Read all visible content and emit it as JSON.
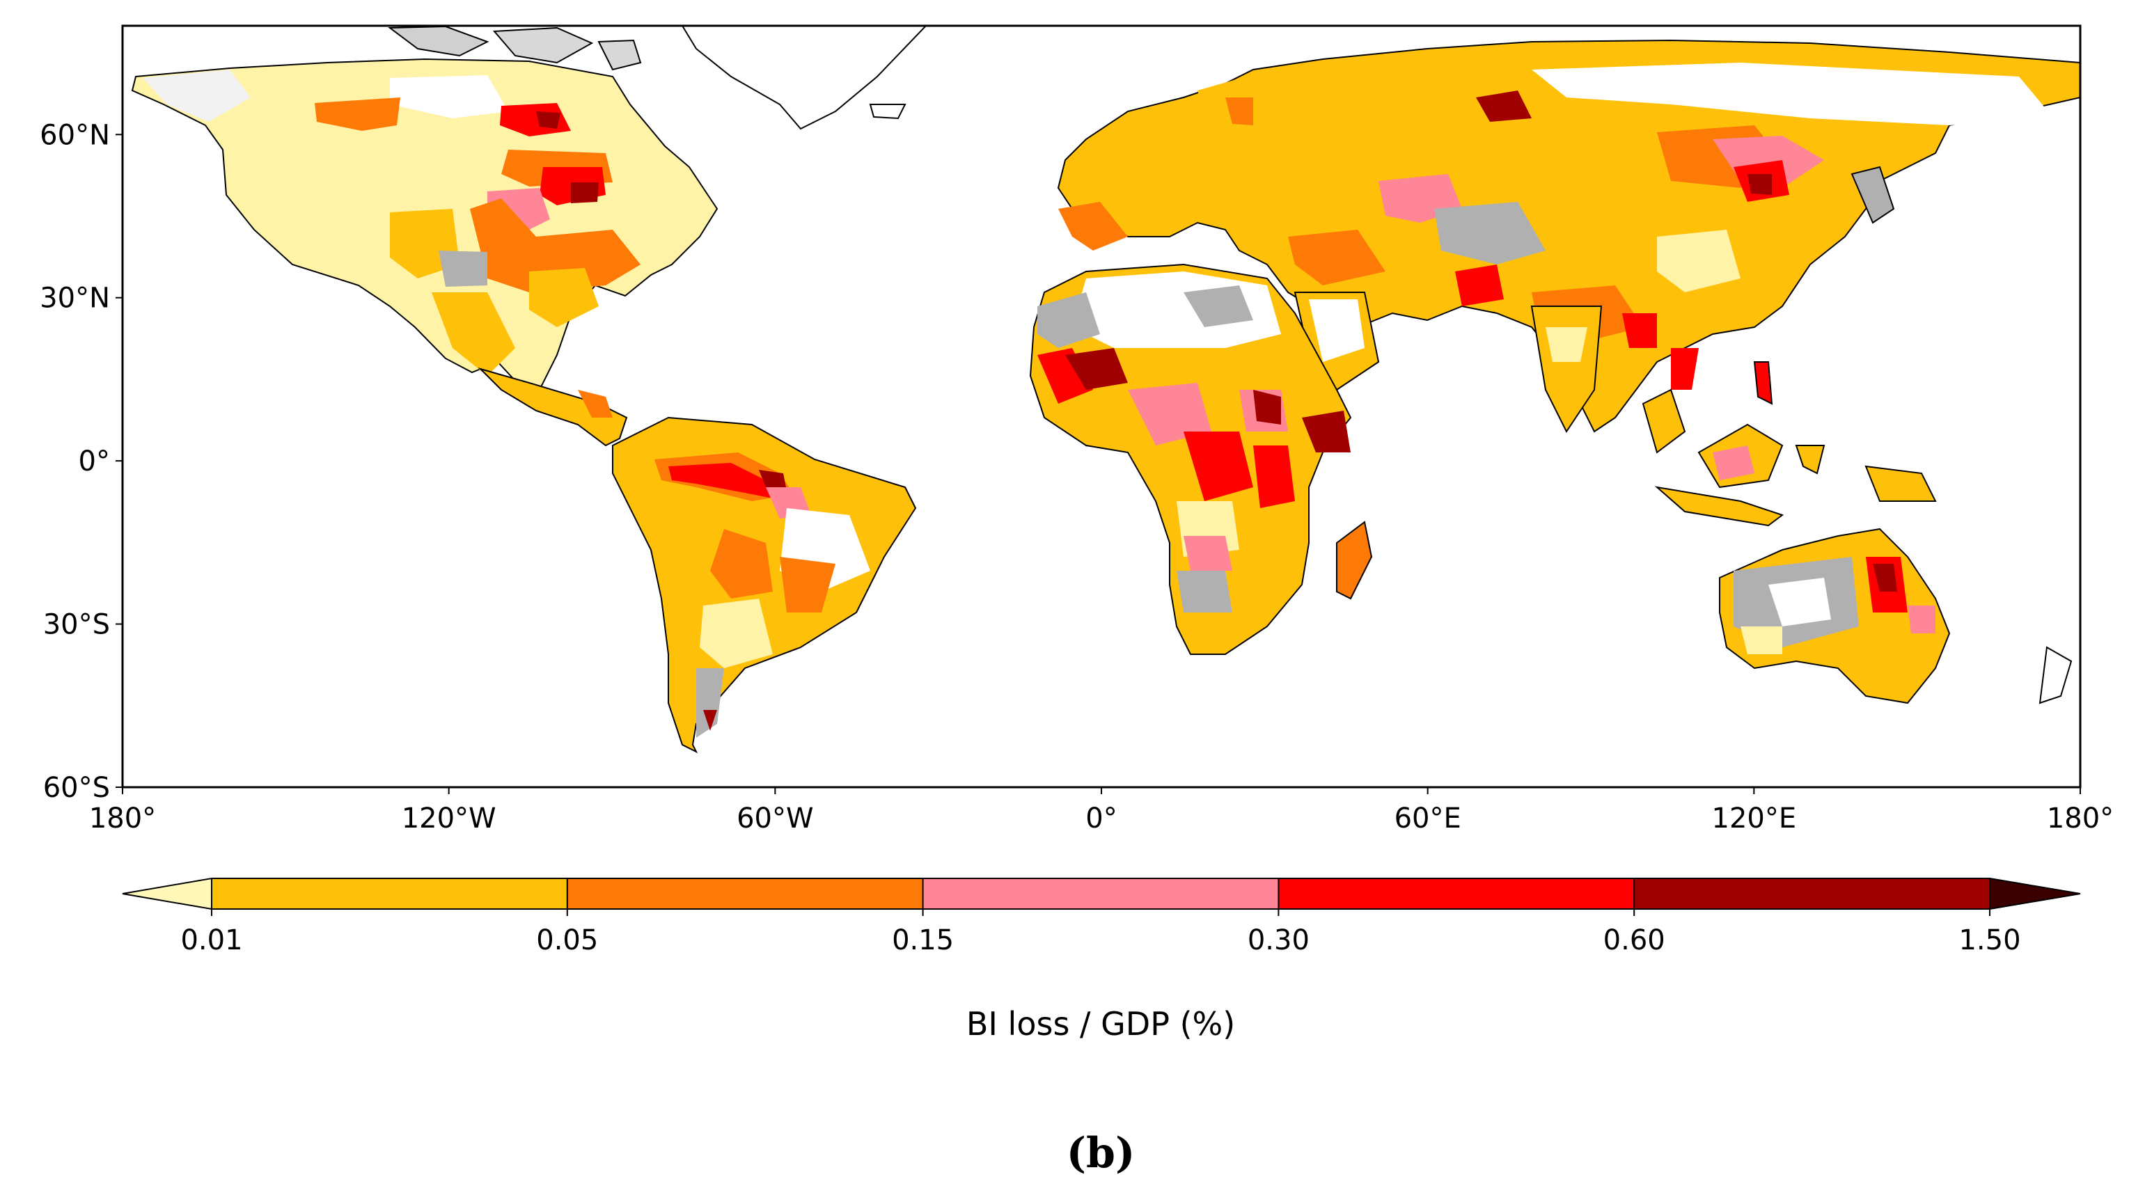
{
  "map": {
    "projection": "equirectangular",
    "extent": {
      "lon": [
        -180,
        180
      ],
      "lat": [
        -60,
        80
      ]
    },
    "lat_ticks": [
      {
        "value": 60,
        "label": "60°N"
      },
      {
        "value": 30,
        "label": "30°N"
      },
      {
        "value": 0,
        "label": "0°"
      },
      {
        "value": -30,
        "label": "30°S"
      },
      {
        "value": -60,
        "label": "60°S"
      }
    ],
    "lon_ticks": [
      {
        "value": -180,
        "label": "180°"
      },
      {
        "value": -120,
        "label": "120°W"
      },
      {
        "value": -60,
        "label": "60°W"
      },
      {
        "value": 0,
        "label": "0°"
      },
      {
        "value": 60,
        "label": "60°E"
      },
      {
        "value": 120,
        "label": "120°E"
      },
      {
        "value": 180,
        "label": "180°"
      }
    ],
    "no_data_color": "#b0b0b0",
    "ocean_color": "#ffffff",
    "coast_color": "#000000"
  },
  "colorbar": {
    "label": "BI loss / GDP (%)",
    "ticks": [
      "0.01",
      "0.05",
      "0.15",
      "0.30",
      "0.60",
      "1.50"
    ],
    "under_color": "#fff8b8",
    "over_color": "#3a0000",
    "colors": [
      "#fec009",
      "#fd7a07",
      "#fe8697",
      "#fe0000",
      "#a10000"
    ]
  },
  "panel_label": "(b)"
}
